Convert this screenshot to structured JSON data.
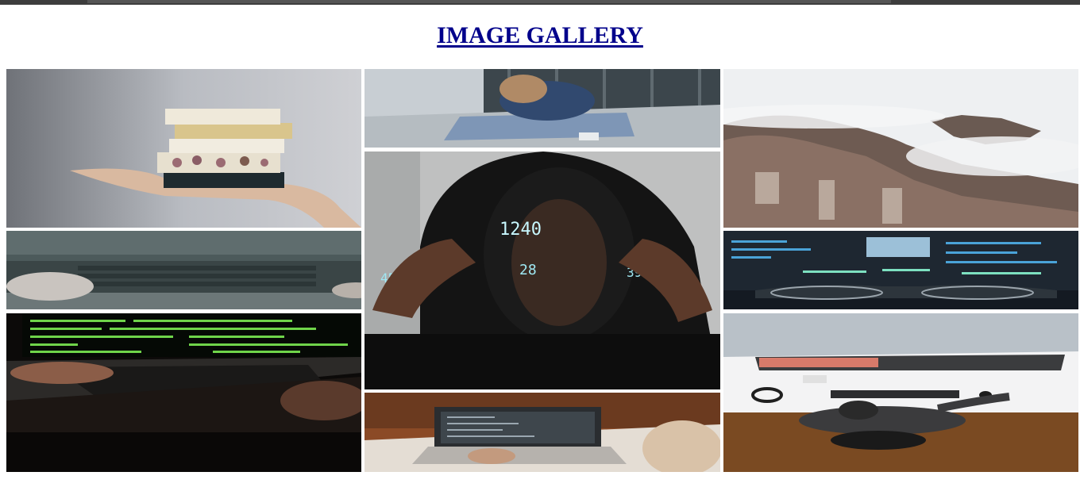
{
  "gallery": {
    "title": "IMAGE GALLERY",
    "images": [
      {
        "name": "soap-stack-photo",
        "subject": "hand holding stacked soap bars"
      },
      {
        "name": "woman-stairs-photo",
        "subject": "woman in denim sitting on steps"
      },
      {
        "name": "misty-mountains-photo",
        "subject": "rocky mountains in fog"
      },
      {
        "name": "laptop-keyboard-photo",
        "subject": "hands near laptop keyboard"
      },
      {
        "name": "hooded-man-code-photo",
        "subject": "man in hood with projected numbers"
      },
      {
        "name": "code-monitor-glasses-photo",
        "subject": "glasses in front of code monitor"
      },
      {
        "name": "green-terminal-laptop-photo",
        "subject": "laptop with green terminal text"
      },
      {
        "name": "laptop-desk-photo",
        "subject": "typing on laptop on wooden desk"
      },
      {
        "name": "workspace-overhead-photo",
        "subject": "overhead view of person at desk"
      }
    ],
    "colors": {
      "title": "#00008b",
      "topbar": "#3d3d3d"
    }
  }
}
